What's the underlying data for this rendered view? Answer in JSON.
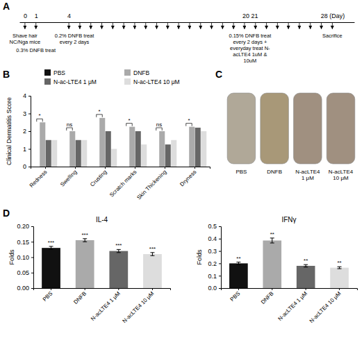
{
  "chart_data": [
    {
      "type": "timeline",
      "title": "A",
      "x": [
        0,
        1,
        4,
        5,
        6,
        7,
        8,
        9,
        10,
        11,
        12,
        13,
        14,
        15,
        16,
        17,
        18,
        19,
        20,
        21,
        22,
        23,
        24,
        25,
        26,
        27,
        28
      ],
      "xlim": [
        -0.5,
        30
      ],
      "xticks": [
        0,
        1,
        4,
        {
          "value": 20.5,
          "label": "20 21"
        },
        {
          "value": 28,
          "label": "28 (Day)"
        }
      ],
      "annotations": [
        {
          "x": 0,
          "text": "Shave hair\nNC/Nga mice"
        },
        {
          "x": 1,
          "text": "0.3% DNFB treat"
        },
        {
          "x": 4.5,
          "text": "0.2% DNFB treat\nevery 2 days"
        },
        {
          "x": 20.5,
          "text": "0.15% DNFB treat\nevery 2 days +\neveryday treat N-\nacLTE4 1uM &\n10uM"
        },
        {
          "x": 28,
          "text": "Sacrifice"
        }
      ]
    },
    {
      "type": "bar",
      "title": "B",
      "categories": [
        "Redness",
        "Swelling",
        "Crusting",
        "Scratch marks",
        "Skin Thickening",
        "Dryness"
      ],
      "series": [
        {
          "name": "PBS",
          "color": "#111111",
          "values": [
            0.0,
            0.0,
            0.0,
            0.0,
            0.0,
            0.0
          ]
        },
        {
          "name": "DNFB",
          "color": "#aaaaaa",
          "values": [
            2.5,
            2.0,
            2.75,
            2.25,
            2.0,
            2.25
          ]
        },
        {
          "name": "N-ac-LTE4 1 μM",
          "color": "#666666",
          "values": [
            1.5,
            1.5,
            2.0,
            2.0,
            1.25,
            2.2
          ]
        },
        {
          "name": "N-ac-LTE4 10 μM",
          "color": "#dddddd",
          "values": [
            1.5,
            1.5,
            1.0,
            1.25,
            1.5,
            2.0
          ]
        }
      ],
      "ylim": [
        0,
        4
      ],
      "yticks": [
        0,
        1,
        2,
        3,
        4
      ],
      "ylabel": "Clinical Dermatitis Score",
      "legend": "top",
      "annotations": [
        {
          "category": "Redness",
          "text": "*"
        },
        {
          "category": "Swelling",
          "text": "ns"
        },
        {
          "category": "Crusting",
          "text": "*"
        },
        {
          "category": "Scratch marks",
          "text": "*"
        },
        {
          "category": "Skin Thickening",
          "text": "ns"
        },
        {
          "category": "Dryness",
          "text": "*"
        }
      ]
    },
    {
      "type": "illustration",
      "title": "C",
      "categories": [
        "PBS",
        "DNFB",
        "N-acLTE4\n1 μM",
        "N-acLTE4\n10 μM"
      ],
      "colors": [
        "#b0a898",
        "#a89878",
        "#a09080",
        "#a09080"
      ]
    },
    {
      "type": "bar",
      "title": "IL-4",
      "categories": [
        "PBS",
        "DNFB",
        "N-acLTE4 1 μM",
        "N-acLTE4 10 μM"
      ],
      "values": [
        0.13,
        0.155,
        0.12,
        0.11
      ],
      "errors": [
        0.005,
        0.005,
        0.005,
        0.005
      ],
      "colors": [
        "#111111",
        "#aaaaaa",
        "#666666",
        "#dddddd"
      ],
      "ylabel": "Folds",
      "ylim": [
        0,
        0.2
      ],
      "yticks": [
        {
          "value": 0,
          "label": "0.00"
        },
        0.05,
        {
          "value": 0.1,
          "label": "0.10"
        },
        0.15,
        {
          "value": 0.2,
          "label": "0.20"
        }
      ],
      "annotations": [
        {
          "text": "D"
        },
        {
          "category": "PBS",
          "text": "***"
        },
        {
          "category": "DNFB",
          "text": "***"
        },
        {
          "category": "N-acLTE4 1 μM",
          "text": "***"
        },
        {
          "category": "N-acLTE4 10 μM",
          "text": "***"
        }
      ]
    },
    {
      "type": "bar",
      "title": "IFNγ",
      "categories": [
        "PBS",
        "DNFB",
        "N-acLTE4 1 μM",
        "N-acLTE4 10 μM"
      ],
      "values": [
        0.2,
        0.385,
        0.18,
        0.165
      ],
      "errors": [
        0.01,
        0.02,
        0.01,
        0.008
      ],
      "colors": [
        "#111111",
        "#aaaaaa",
        "#666666",
        "#dddddd"
      ],
      "ylabel": "Folds",
      "ylim": [
        0,
        0.5
      ],
      "yticks": [
        {
          "value": 0,
          "label": "0.0"
        },
        0.1,
        0.2,
        0.3,
        0.4,
        0.5
      ],
      "annotations": [
        {
          "category": "PBS",
          "text": "**"
        },
        {
          "category": "DNFB",
          "text": "**"
        },
        {
          "category": "N-acLTE4 1 μM",
          "text": "**"
        },
        {
          "category": "N-acLTE4 10 μM",
          "text": "**"
        }
      ]
    }
  ]
}
